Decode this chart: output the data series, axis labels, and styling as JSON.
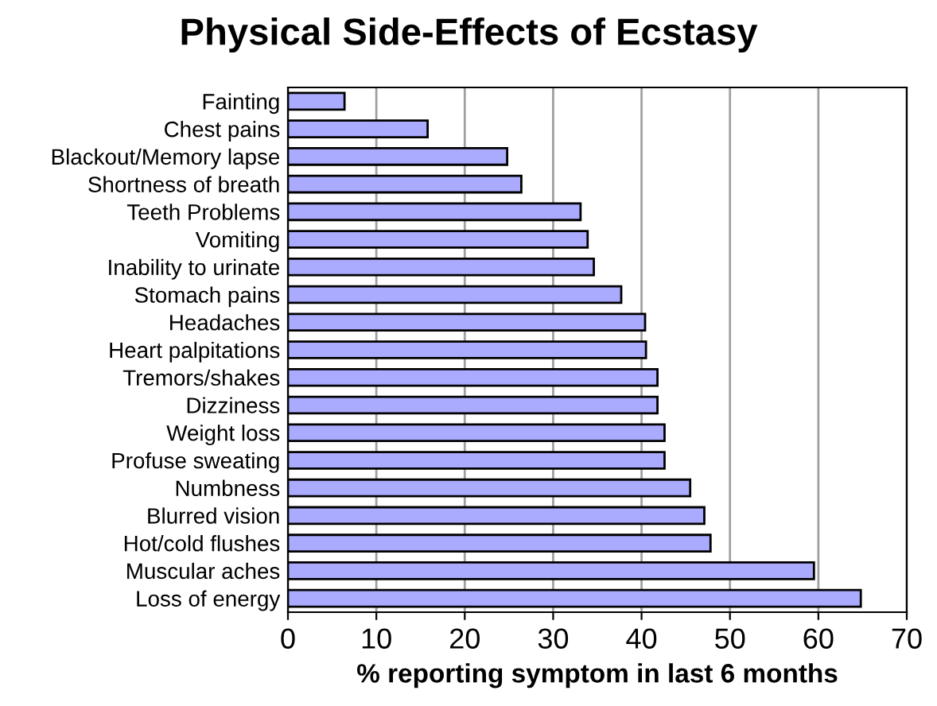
{
  "chart_data": {
    "type": "bar",
    "orientation": "horizontal",
    "title": "Physical Side-Effects of Ecstasy",
    "xlabel": "% reporting symptom in last 6 months",
    "categories": [
      "Fainting",
      "Chest pains",
      "Blackout/Memory lapse",
      "Shortness of breath",
      "Teeth Problems",
      "Vomiting",
      "Inability to urinate",
      "Stomach pains",
      "Headaches",
      "Heart palpitations",
      "Tremors/shakes",
      "Dizziness",
      "Weight loss",
      "Profuse sweating",
      "Numbness",
      "Blurred vision",
      "Hot/cold flushes",
      "Muscular aches",
      "Loss of energy"
    ],
    "values": [
      6.4,
      15.8,
      24.8,
      26.4,
      33.1,
      33.9,
      34.6,
      37.7,
      40.4,
      40.5,
      41.8,
      41.8,
      42.6,
      42.6,
      45.5,
      47.1,
      47.8,
      59.5,
      64.8
    ],
    "color": "#aaaaff",
    "xlim": [
      0,
      70
    ],
    "xticks": [
      0,
      10,
      20,
      30,
      40,
      50,
      60,
      70
    ],
    "grid": "x"
  }
}
